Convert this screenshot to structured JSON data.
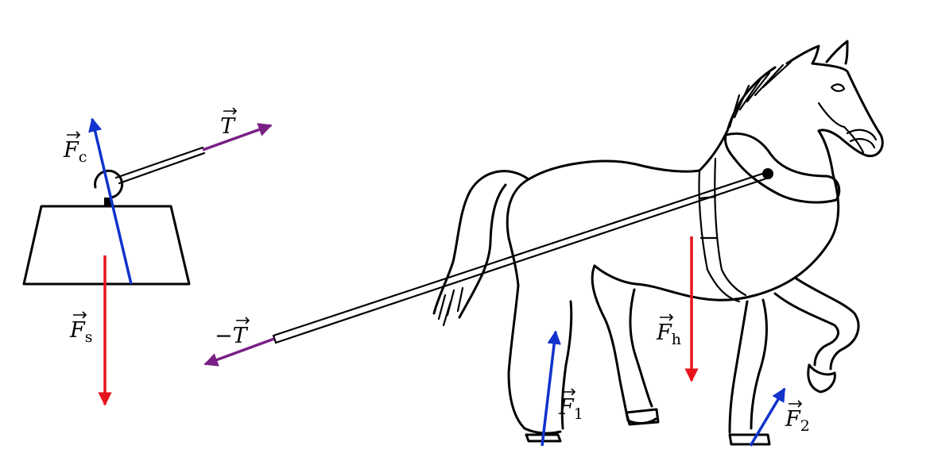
{
  "colors": {
    "gravity": "#e8141b",
    "normal": "#1133cc",
    "tension": "#7a1f86",
    "outline": "#000000"
  },
  "labels": {
    "F_c": {
      "symbol": "F",
      "sub": "c"
    },
    "T": {
      "symbol": "T"
    },
    "F_s": {
      "symbol": "F",
      "sub": "s"
    },
    "minus_T": {
      "sign": "−",
      "symbol": "T"
    },
    "F_h": {
      "symbol": "F",
      "sub": "h"
    },
    "F_1": {
      "symbol": "F",
      "sub": "1"
    },
    "F_2": {
      "symbol": "F",
      "sub": "2"
    }
  }
}
